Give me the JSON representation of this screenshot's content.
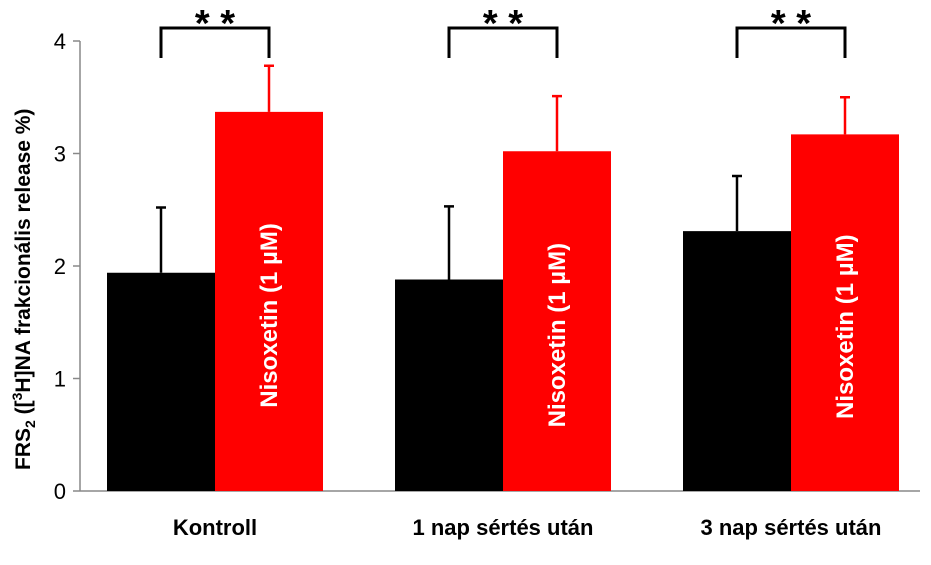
{
  "chart_data": {
    "type": "bar",
    "ylabel": {
      "prefix": "FRS",
      "subscript": "2",
      "middle": " ([",
      "superscript": "3",
      "suffix": "H]NA frakcionális release %)"
    },
    "ylim": [
      0,
      4
    ],
    "yticks": [
      0,
      1,
      2,
      3,
      4
    ],
    "grid": false,
    "categories": [
      "Kontroll",
      "1 nap sértés után",
      "3 nap sértés után"
    ],
    "series": [
      {
        "name": "",
        "color": "#000000",
        "values": [
          1.94,
          1.88,
          2.31
        ],
        "errors": [
          0.58,
          0.65,
          0.49
        ]
      },
      {
        "name": "Nisoxetin (1 µM)",
        "color": "#ff0000",
        "values": [
          3.37,
          3.02,
          3.17
        ],
        "errors": [
          0.41,
          0.49,
          0.33
        ]
      }
    ],
    "bar_label": "Nisoxetin (1 µM)",
    "significance": [
      "* *",
      "* *",
      "* *"
    ]
  }
}
